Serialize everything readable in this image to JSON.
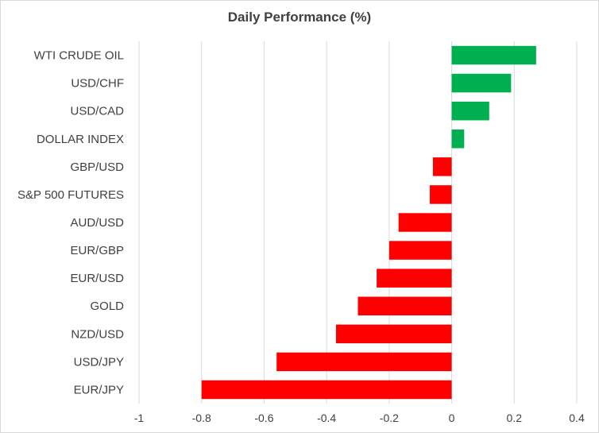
{
  "chart_data": {
    "type": "bar",
    "orientation": "horizontal",
    "title": "Daily Performance (%)",
    "xlabel": "",
    "ylabel": "",
    "categories": [
      "WTI CRUDE OIL",
      "USD/CHF",
      "USD/CAD",
      "DOLLAR INDEX",
      "GBP/USD",
      "S&P 500 FUTURES",
      "AUD/USD",
      "EUR/GBP",
      "EUR/USD",
      "GOLD",
      "NZD/USD",
      "USD/JPY",
      "EUR/JPY"
    ],
    "values": [
      0.27,
      0.19,
      0.12,
      0.04,
      -0.06,
      -0.07,
      -0.17,
      -0.2,
      -0.24,
      -0.3,
      -0.37,
      -0.56,
      -0.8
    ],
    "xlim": [
      -1,
      0.4
    ],
    "xticks": [
      "-1",
      "-0.8",
      "-0.6",
      "-0.4",
      "-0.2",
      "0",
      "0.2",
      "0.4"
    ],
    "xtick_values": [
      -1,
      -0.8,
      -0.6,
      -0.4,
      -0.2,
      0,
      0.2,
      0.4
    ],
    "colors": {
      "positive": "#00b050",
      "negative": "#ff0000",
      "grid": "#d9d9d9",
      "text": "#404040"
    },
    "grid": true,
    "legend": "none"
  }
}
